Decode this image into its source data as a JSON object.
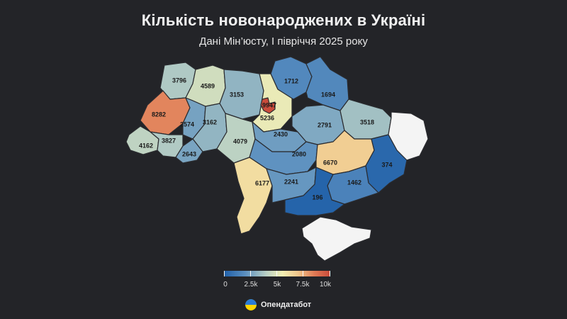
{
  "header": {
    "title": "Кількість новонароджених в Україні",
    "subtitle": "Дані Мін’юсту, І півріччя 2025 року"
  },
  "map": {
    "values": {
      "volyn": "3796",
      "rivne": "4589",
      "zhytomyr": "3153",
      "chernihiv": "1712",
      "sumy": "1694",
      "lviv": "8282",
      "kyiv_city": "9947",
      "kyiv_oblast": "5236",
      "ternopil": "2574",
      "khmelnytskyi": "3162",
      "kharkiv": "3518",
      "poltava": "2791",
      "cherkasy": "2430",
      "vinnytsia": "4079",
      "zakarpattia": "4162",
      "ivano_frankivsk": "3827",
      "chernivtsi": "2643",
      "kirovohrad": "2080",
      "dnipro": "6670",
      "donetsk": "374",
      "odesa": "6177",
      "mykolaiv": "2241",
      "zaporizhzhia": "1462",
      "kherson": "196"
    },
    "no_data_regions": [
      "luhansk",
      "crimea"
    ]
  },
  "legend": {
    "ticks": [
      "0",
      "2.5k",
      "5k",
      "7.5k",
      "10k"
    ],
    "min": 0,
    "max": 10000
  },
  "brand": {
    "name": "Опендатабот"
  },
  "colors": {
    "background": "#232428",
    "no_data": "#f4f4f4",
    "low": "#1f5fa8",
    "mid": "#f4f0b4",
    "high": "#c94a3a"
  }
}
